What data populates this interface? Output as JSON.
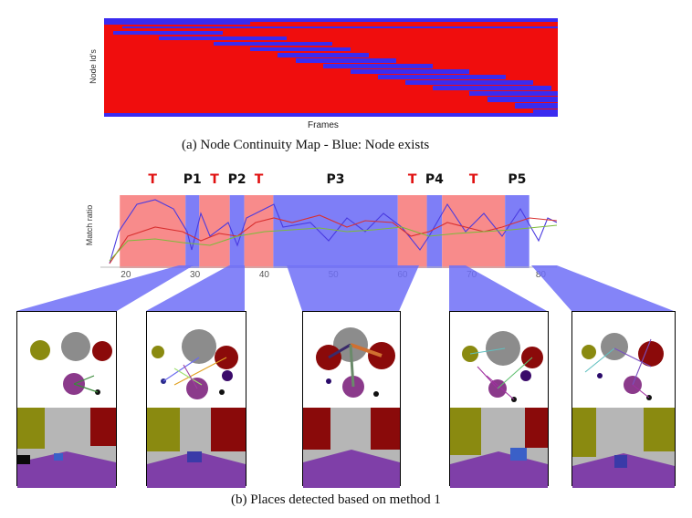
{
  "top_map": {
    "ylabel": "Node Id's",
    "xlabel": "Frames",
    "caption": "(a) Node Continuity Map - Blue: Node exists",
    "colors": {
      "exists": "#3a2bf0",
      "absent": "#f00d0d"
    }
  },
  "match_chart": {
    "ylabel": "Match ratio",
    "x_ticks": [
      "20",
      "30",
      "40",
      "50",
      "60",
      "70",
      "80"
    ],
    "segments": [
      {
        "label": "T",
        "kind": "transition",
        "from": 18.8,
        "to": 28.3
      },
      {
        "label": "P1",
        "kind": "place",
        "from": 28.3,
        "to": 30.3
      },
      {
        "label": "T",
        "kind": "transition",
        "from": 30.3,
        "to": 34.7
      },
      {
        "label": "P2",
        "kind": "place",
        "from": 34.7,
        "to": 36.8
      },
      {
        "label": "T",
        "kind": "transition",
        "from": 36.8,
        "to": 41.0
      },
      {
        "label": "P3",
        "kind": "place",
        "from": 41.0,
        "to": 59.0
      },
      {
        "label": "T",
        "kind": "transition",
        "from": 59.0,
        "to": 63.2
      },
      {
        "label": "P4",
        "kind": "place",
        "from": 63.2,
        "to": 65.4
      },
      {
        "label": "T",
        "kind": "transition",
        "from": 65.4,
        "to": 74.5
      },
      {
        "label": "P5",
        "kind": "place",
        "from": 74.5,
        "to": 78.0
      }
    ],
    "colors": {
      "place": "#7e7ef7",
      "transition": "#f88b8b",
      "t_label": "#e01010",
      "p_label": "#111111",
      "line_blue": "#4a3be0",
      "line_red": "#d83030",
      "line_green": "#7dbb3a"
    }
  },
  "bottom_caption": "(b) Places detected based on method 1"
}
